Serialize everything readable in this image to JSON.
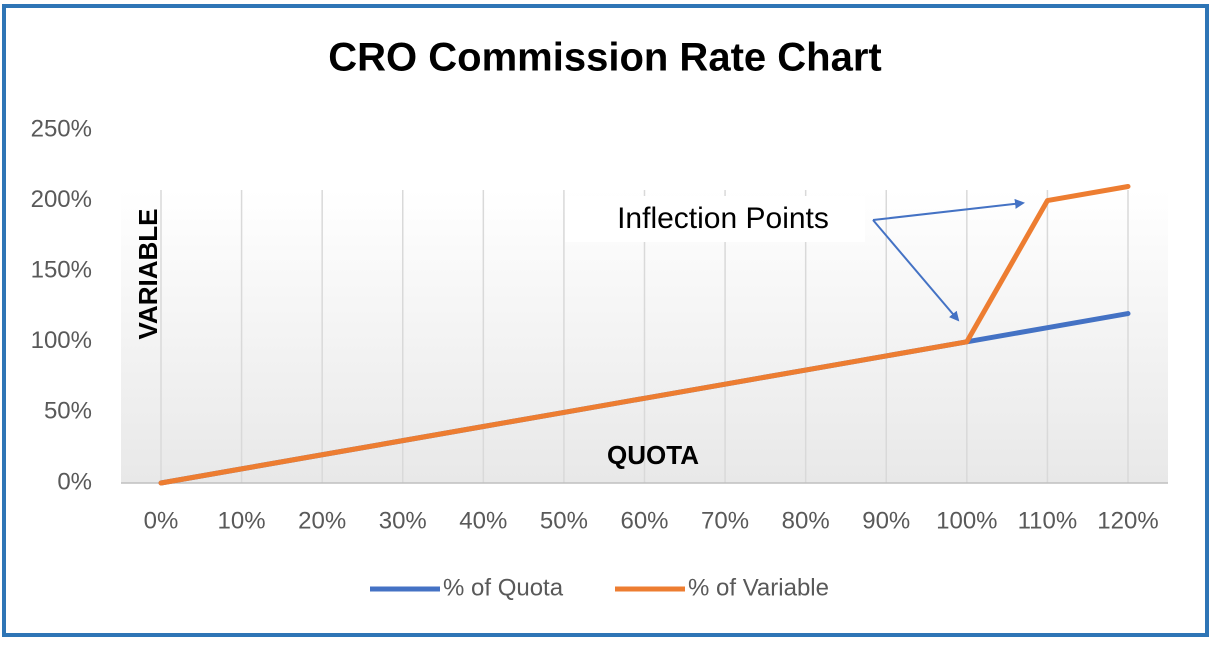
{
  "chart_data": {
    "type": "line",
    "title": "CRO Commission Rate Chart",
    "y_label": "VARIABLE",
    "x_label": "QUOTA",
    "annotation": "Inflection Points",
    "categories": [
      "0%",
      "10%",
      "20%",
      "30%",
      "40%",
      "50%",
      "60%",
      "70%",
      "80%",
      "90%",
      "100%",
      "110%",
      "120%"
    ],
    "series": [
      {
        "name": "% of Quota",
        "color": "#4472c4",
        "values": [
          0,
          10,
          20,
          30,
          40,
          50,
          60,
          70,
          80,
          90,
          100,
          110,
          120
        ]
      },
      {
        "name": "% of Variable",
        "color": "#ed7d31",
        "values": [
          0,
          10,
          20,
          30,
          40,
          50,
          60,
          70,
          80,
          90,
          100,
          200,
          210
        ]
      }
    ],
    "ylim": [
      0,
      250
    ],
    "yticks": [
      {
        "value": 0,
        "label": "0%"
      },
      {
        "value": 50,
        "label": "50%"
      },
      {
        "value": 100,
        "label": "100%"
      },
      {
        "value": 150,
        "label": "150%"
      },
      {
        "value": 200,
        "label": "200%"
      },
      {
        "value": 250,
        "label": "250%"
      }
    ],
    "vertical_grid": true,
    "legend": "bottom"
  }
}
